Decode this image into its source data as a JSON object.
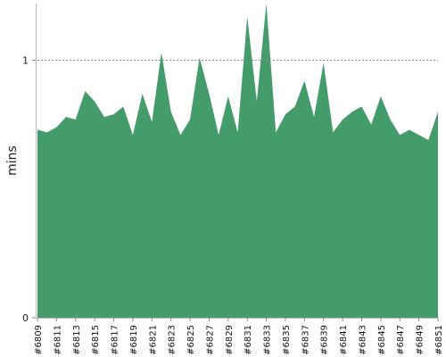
{
  "chart_data": {
    "type": "area",
    "title": "",
    "xlabel": "",
    "ylabel": "mins",
    "ylim": [
      0,
      1.22
    ],
    "y_ticks": [
      "0",
      "1"
    ],
    "reference_line": {
      "value": 1,
      "style": "dotted",
      "color": "#888888"
    },
    "grid": false,
    "legend": "none",
    "fill_color": "#459C6B",
    "x_tick_labels": [
      "#6809",
      "#6811",
      "#6813",
      "#6815",
      "#6817",
      "#6819",
      "#6821",
      "#6823",
      "#6825",
      "#6827",
      "#6829",
      "#6831",
      "#6833",
      "#6835",
      "#6837",
      "#6839",
      "#6841",
      "#6843",
      "#6845",
      "#6847",
      "#6849",
      "#6851"
    ],
    "x": [
      "#6809",
      "#6810",
      "#6811",
      "#6812",
      "#6813",
      "#6814",
      "#6815",
      "#6816",
      "#6817",
      "#6818",
      "#6819",
      "#6820",
      "#6821",
      "#6822",
      "#6823",
      "#6824",
      "#6825",
      "#6826",
      "#6827",
      "#6828",
      "#6829",
      "#6830",
      "#6831",
      "#6832",
      "#6833",
      "#6834",
      "#6835",
      "#6836",
      "#6837",
      "#6838",
      "#6839",
      "#6840",
      "#6841",
      "#6842",
      "#6843",
      "#6844",
      "#6845",
      "#6846",
      "#6847",
      "#6848",
      "#6849",
      "#6850",
      "#6851"
    ],
    "values": [
      0.73,
      0.72,
      0.74,
      0.78,
      0.77,
      0.88,
      0.84,
      0.78,
      0.79,
      0.82,
      0.71,
      0.87,
      0.76,
      1.03,
      0.8,
      0.71,
      0.77,
      1.01,
      0.87,
      0.71,
      0.86,
      0.72,
      1.17,
      0.84,
      1.22,
      0.72,
      0.79,
      0.82,
      0.92,
      0.78,
      0.99,
      0.72,
      0.77,
      0.8,
      0.82,
      0.75,
      0.86,
      0.77,
      0.71,
      0.73,
      0.71,
      0.69,
      0.8
    ]
  }
}
